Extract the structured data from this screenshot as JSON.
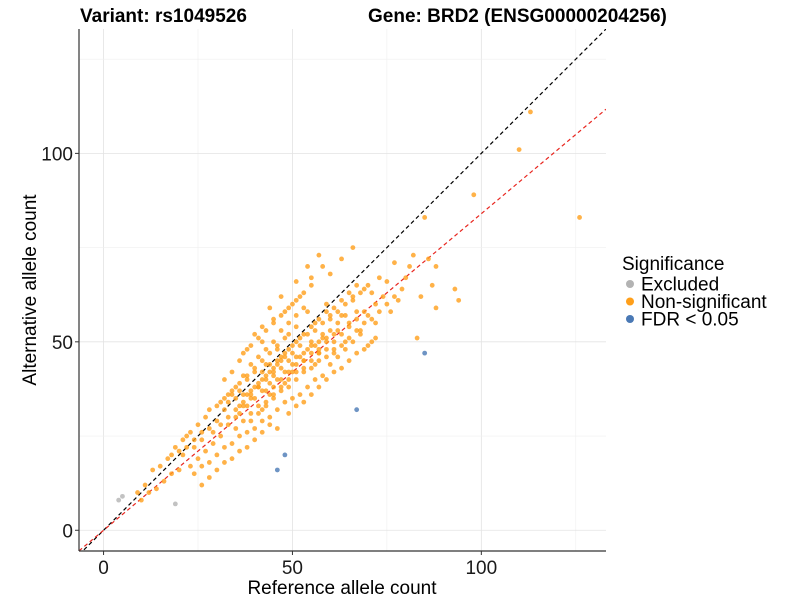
{
  "chart_data": {
    "type": "scatter",
    "title_left": "Variant: rs1049526",
    "title_right": "Gene: BRD2 (ENSG00000204256)",
    "xlabel": "Reference allele count",
    "ylabel": "Alternative allele count",
    "xlim": [
      -6.5,
      133
    ],
    "ylim": [
      -5.5,
      133
    ],
    "x_ticks": [
      0,
      50,
      100
    ],
    "y_ticks": [
      0,
      50,
      100
    ],
    "grid": true,
    "legend": {
      "title": "Significance",
      "position": "right",
      "entries": [
        {
          "name": "Excluded",
          "color": "#b3b3b3"
        },
        {
          "name": "Non-significant",
          "color": "#ff9f1a"
        },
        {
          "name": "FDR < 0.05",
          "color": "#4a79b5"
        }
      ]
    },
    "reference_lines": [
      {
        "name": "identity",
        "slope": 1.0,
        "intercept": 0,
        "color": "#000000",
        "style": "dashed"
      },
      {
        "name": "fit",
        "slope": 0.84,
        "intercept": 0,
        "color": "#e8261f",
        "style": "dashed"
      }
    ],
    "series": [
      {
        "name": "Excluded",
        "color": "#b3b3b3",
        "points": [
          [
            4,
            8
          ],
          [
            5,
            9
          ],
          [
            19,
            7
          ]
        ]
      },
      {
        "name": "FDR < 0.05",
        "color": "#4a79b5",
        "points": [
          [
            46,
            16
          ],
          [
            48,
            20
          ],
          [
            67,
            32
          ],
          [
            85,
            47
          ]
        ]
      },
      {
        "name": "Non-significant",
        "color": "#ff9f1a",
        "points": [
          [
            113,
            111
          ],
          [
            110,
            101
          ],
          [
            126,
            83
          ],
          [
            98,
            89
          ],
          [
            93,
            64
          ],
          [
            94,
            61
          ],
          [
            88,
            70
          ],
          [
            86,
            72
          ],
          [
            87,
            65
          ],
          [
            88,
            59
          ],
          [
            85,
            83
          ],
          [
            84,
            62
          ],
          [
            82,
            73
          ],
          [
            81,
            70
          ],
          [
            80,
            67
          ],
          [
            79,
            64
          ],
          [
            83,
            51
          ],
          [
            78,
            61
          ],
          [
            77,
            71
          ],
          [
            76,
            58
          ],
          [
            75,
            66
          ],
          [
            74,
            62
          ],
          [
            73,
            67
          ],
          [
            72,
            60
          ],
          [
            72,
            55
          ],
          [
            71,
            63
          ],
          [
            70,
            57
          ],
          [
            69,
            64
          ],
          [
            68,
            52
          ],
          [
            67,
            58
          ],
          [
            66,
            61
          ],
          [
            65,
            55
          ],
          [
            64,
            50
          ],
          [
            63,
            57
          ],
          [
            62,
            53
          ],
          [
            61,
            48
          ],
          [
            60,
            56
          ],
          [
            59,
            60
          ],
          [
            58,
            52
          ],
          [
            57,
            47
          ],
          [
            56,
            55
          ],
          [
            56,
            44
          ],
          [
            55,
            50
          ],
          [
            54,
            58
          ],
          [
            53,
            45
          ],
          [
            52,
            49
          ],
          [
            51,
            54
          ],
          [
            50,
            42
          ],
          [
            50,
            47
          ],
          [
            49,
            52
          ],
          [
            48,
            39
          ],
          [
            47,
            45
          ],
          [
            46,
            48
          ],
          [
            45,
            41
          ],
          [
            44,
            36
          ],
          [
            43,
            44
          ],
          [
            42,
            50
          ],
          [
            41,
            38
          ],
          [
            40,
            42
          ],
          [
            39,
            35
          ],
          [
            38,
            40
          ],
          [
            37,
            33
          ],
          [
            36,
            37
          ],
          [
            35,
            30
          ],
          [
            34,
            36
          ],
          [
            33,
            28
          ],
          [
            32,
            32
          ],
          [
            31,
            25
          ],
          [
            30,
            29
          ],
          [
            29,
            23
          ],
          [
            28,
            27
          ],
          [
            27,
            21
          ],
          [
            26,
            24
          ],
          [
            25,
            19
          ],
          [
            24,
            22
          ],
          [
            23,
            17
          ],
          [
            22,
            25
          ],
          [
            21,
            20
          ],
          [
            20,
            16
          ],
          [
            19,
            22
          ],
          [
            18,
            15
          ],
          [
            17,
            19
          ],
          [
            16,
            13
          ],
          [
            15,
            17
          ],
          [
            14,
            11
          ],
          [
            13,
            16
          ],
          [
            12,
            10
          ],
          [
            11,
            12
          ],
          [
            10,
            8
          ],
          [
            9,
            10
          ],
          [
            55,
            65
          ],
          [
            58,
            70
          ],
          [
            52,
            62
          ],
          [
            48,
            58
          ],
          [
            45,
            55
          ],
          [
            60,
            68
          ],
          [
            63,
            72
          ],
          [
            66,
            75
          ],
          [
            50,
            60
          ],
          [
            42,
            54
          ],
          [
            40,
            52
          ],
          [
            38,
            48
          ],
          [
            36,
            45
          ],
          [
            34,
            42
          ],
          [
            32,
            40
          ],
          [
            44,
            59
          ],
          [
            47,
            62
          ],
          [
            51,
            66
          ],
          [
            54,
            70
          ],
          [
            57,
            73
          ],
          [
            60,
            44
          ],
          [
            62,
            46
          ],
          [
            64,
            48
          ],
          [
            66,
            50
          ],
          [
            68,
            53
          ],
          [
            70,
            49
          ],
          [
            72,
            51
          ],
          [
            58,
            41
          ],
          [
            56,
            40
          ],
          [
            54,
            38
          ],
          [
            52,
            36
          ],
          [
            50,
            35
          ],
          [
            48,
            34
          ],
          [
            46,
            32
          ],
          [
            44,
            30
          ],
          [
            42,
            29
          ],
          [
            40,
            27
          ],
          [
            38,
            26
          ],
          [
            36,
            25
          ],
          [
            34,
            23
          ],
          [
            32,
            22
          ],
          [
            30,
            20
          ],
          [
            28,
            18
          ],
          [
            26,
            17
          ],
          [
            24,
            15
          ],
          [
            35,
            38
          ],
          [
            37,
            41
          ],
          [
            39,
            44
          ],
          [
            41,
            46
          ],
          [
            43,
            48
          ],
          [
            45,
            50
          ],
          [
            47,
            53
          ],
          [
            49,
            55
          ],
          [
            51,
            57
          ],
          [
            53,
            59
          ],
          [
            36,
            31
          ],
          [
            38,
            33
          ],
          [
            40,
            35
          ],
          [
            42,
            37
          ],
          [
            44,
            39
          ],
          [
            46,
            40
          ],
          [
            48,
            42
          ],
          [
            50,
            44
          ],
          [
            52,
            46
          ],
          [
            54,
            48
          ],
          [
            56,
            49
          ],
          [
            58,
            51
          ],
          [
            60,
            53
          ],
          [
            62,
            55
          ],
          [
            64,
            57
          ],
          [
            33,
            34
          ],
          [
            35,
            35
          ],
          [
            37,
            36
          ],
          [
            39,
            37
          ],
          [
            41,
            39
          ],
          [
            43,
            40
          ],
          [
            45,
            42
          ],
          [
            47,
            43
          ],
          [
            49,
            45
          ],
          [
            51,
            46
          ],
          [
            53,
            47
          ],
          [
            55,
            49
          ],
          [
            57,
            50
          ],
          [
            59,
            51
          ],
          [
            61,
            52
          ],
          [
            30,
            33
          ],
          [
            32,
            35
          ],
          [
            34,
            37
          ],
          [
            36,
            39
          ],
          [
            38,
            41
          ],
          [
            40,
            43
          ],
          [
            42,
            45
          ],
          [
            44,
            47
          ],
          [
            46,
            49
          ],
          [
            48,
            51
          ],
          [
            29,
            26
          ],
          [
            31,
            28
          ],
          [
            33,
            30
          ],
          [
            35,
            32
          ],
          [
            37,
            34
          ],
          [
            39,
            36
          ],
          [
            41,
            38
          ],
          [
            43,
            41
          ],
          [
            45,
            43
          ],
          [
            47,
            46
          ],
          [
            49,
            48
          ],
          [
            51,
            50
          ],
          [
            53,
            52
          ],
          [
            55,
            54
          ],
          [
            57,
            56
          ],
          [
            59,
            58
          ],
          [
            61,
            59
          ],
          [
            63,
            61
          ],
          [
            65,
            63
          ],
          [
            67,
            65
          ],
          [
            27,
            30
          ],
          [
            25,
            28
          ],
          [
            23,
            26
          ],
          [
            21,
            24
          ],
          [
            31,
            34
          ],
          [
            33,
            36
          ],
          [
            28,
            32
          ],
          [
            26,
            26
          ],
          [
            24,
            24
          ],
          [
            22,
            22
          ],
          [
            20,
            21
          ],
          [
            18,
            20
          ],
          [
            44,
            28
          ],
          [
            46,
            27
          ],
          [
            42,
            26
          ],
          [
            40,
            24
          ],
          [
            38,
            22
          ],
          [
            36,
            21
          ],
          [
            34,
            19
          ],
          [
            32,
            18
          ],
          [
            30,
            16
          ],
          [
            28,
            14
          ],
          [
            26,
            12
          ],
          [
            39,
            29
          ],
          [
            41,
            31
          ],
          [
            43,
            33
          ],
          [
            45,
            35
          ],
          [
            47,
            37
          ],
          [
            49,
            38
          ],
          [
            51,
            40
          ],
          [
            53,
            42
          ],
          [
            55,
            43
          ],
          [
            57,
            45
          ],
          [
            59,
            46
          ],
          [
            61,
            47
          ],
          [
            63,
            49
          ],
          [
            65,
            51
          ],
          [
            67,
            53
          ],
          [
            69,
            55
          ],
          [
            71,
            56
          ],
          [
            73,
            58
          ],
          [
            75,
            60
          ],
          [
            77,
            62
          ],
          [
            42,
            42
          ],
          [
            44,
            44
          ],
          [
            46,
            45
          ],
          [
            48,
            47
          ],
          [
            50,
            49
          ],
          [
            52,
            51
          ],
          [
            54,
            52
          ],
          [
            56,
            53
          ],
          [
            58,
            55
          ],
          [
            60,
            57
          ],
          [
            62,
            58
          ],
          [
            64,
            60
          ],
          [
            66,
            62
          ],
          [
            68,
            63
          ],
          [
            70,
            65
          ],
          [
            36,
            33
          ],
          [
            38,
            36
          ],
          [
            40,
            38
          ],
          [
            42,
            40
          ],
          [
            44,
            42
          ],
          [
            46,
            44
          ],
          [
            48,
            46
          ],
          [
            37,
            47
          ],
          [
            39,
            49
          ],
          [
            41,
            51
          ],
          [
            43,
            53
          ],
          [
            45,
            56
          ],
          [
            47,
            57
          ],
          [
            49,
            59
          ],
          [
            51,
            61
          ],
          [
            53,
            63
          ],
          [
            55,
            67
          ],
          [
            49,
            31
          ],
          [
            51,
            33
          ],
          [
            53,
            34
          ],
          [
            55,
            36
          ],
          [
            57,
            38
          ],
          [
            59,
            40
          ],
          [
            61,
            42
          ],
          [
            63,
            43
          ],
          [
            65,
            45
          ],
          [
            67,
            47
          ],
          [
            69,
            48
          ],
          [
            71,
            50
          ],
          [
            35,
            27
          ],
          [
            37,
            29
          ],
          [
            39,
            31
          ],
          [
            41,
            33
          ],
          [
            43,
            34
          ],
          [
            45,
            36
          ],
          [
            47,
            38
          ],
          [
            49,
            40
          ],
          [
            51,
            42
          ],
          [
            53,
            43
          ],
          [
            55,
            45
          ],
          [
            57,
            47
          ],
          [
            59,
            48
          ],
          [
            61,
            50
          ],
          [
            63,
            52
          ],
          [
            65,
            54
          ],
          [
            67,
            56
          ],
          [
            69,
            58
          ],
          [
            43,
            37
          ],
          [
            45,
            38
          ],
          [
            47,
            40
          ],
          [
            49,
            42
          ],
          [
            51,
            44
          ],
          [
            53,
            45
          ],
          [
            55,
            47
          ],
          [
            57,
            48
          ],
          [
            59,
            50
          ],
          [
            42,
            32
          ]
        ]
      }
    ]
  }
}
